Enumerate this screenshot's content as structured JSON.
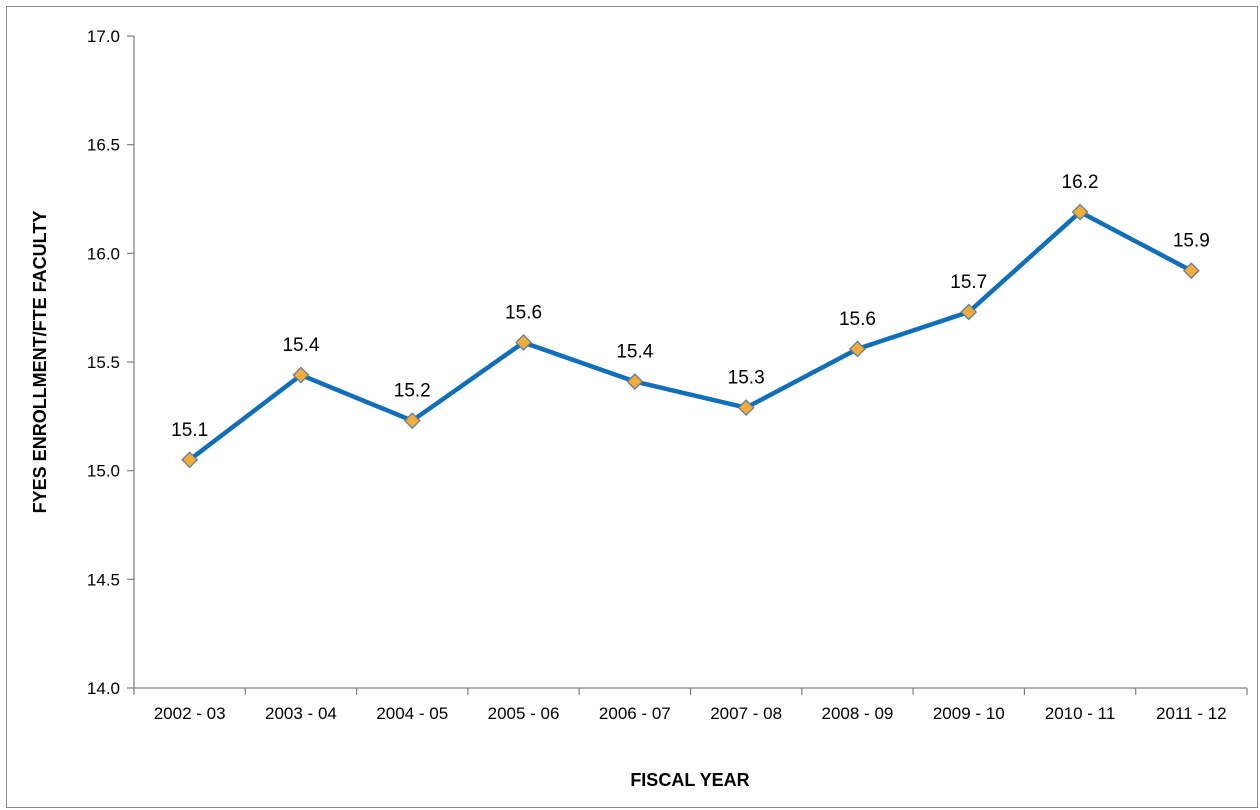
{
  "chart_data": {
    "type": "line",
    "title": "",
    "xlabel": "FISCAL YEAR",
    "ylabel": "FYES ENROLLMENT/FTE FACULTY",
    "categories": [
      "2002 - 03",
      "2003 - 04",
      "2004 - 05",
      "2005 - 06",
      "2006 - 07",
      "2007 - 08",
      "2008 - 09",
      "2009 - 10",
      "2010 - 11",
      "2011 - 12"
    ],
    "series": [
      {
        "values": [
          15.05,
          15.44,
          15.23,
          15.59,
          15.41,
          15.29,
          15.56,
          15.73,
          16.19,
          15.92
        ],
        "data_labels": [
          "15.1",
          "15.4",
          "15.2",
          "15.6",
          "15.4",
          "15.3",
          "15.6",
          "15.7",
          "16.2",
          "15.9"
        ],
        "line_color": "#0f6fba",
        "marker_color": "#f6ac33",
        "marker_edge_color": "#5f7ea0",
        "marker": "diamond"
      }
    ],
    "ylim": [
      14.0,
      17.0
    ],
    "yticks": [
      "14.0",
      "14.5",
      "15.0",
      "15.5",
      "16.0",
      "16.5",
      "17.0"
    ],
    "grid": false,
    "legend": "none"
  }
}
